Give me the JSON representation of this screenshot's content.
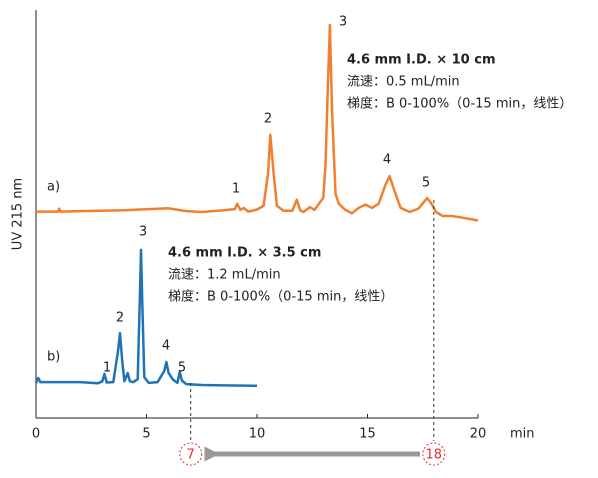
{
  "chart_data": {
    "type": "line",
    "y_label": "UV 215 nm",
    "x_label": "min",
    "xlim": [
      0,
      20
    ],
    "xticks": [
      0,
      5,
      10,
      15,
      20
    ],
    "ylim": [
      0,
      100
    ],
    "series": [
      {
        "name": "a)",
        "color": "#f07f2e",
        "description": [
          "4.6 mm I.D. × 10 cm",
          "流速：0.5 mL/min",
          "梯度：B 0-100%（0-15 min，线性）"
        ],
        "peak_labels": [
          "1",
          "2",
          "3",
          "4",
          "5"
        ],
        "x": [
          0,
          1,
          1.05,
          1.1,
          2,
          4,
          6,
          6.8,
          7.5,
          8.5,
          9,
          9.1,
          9.25,
          9.4,
          9.6,
          9.8,
          10,
          10.3,
          10.5,
          10.6,
          10.75,
          10.9,
          11.2,
          11.6,
          11.8,
          11.95,
          12.1,
          12.4,
          12.6,
          12.8,
          13.0,
          13.1,
          13.2,
          13.3,
          13.4,
          13.55,
          13.7,
          14,
          14.3,
          14.6,
          14.9,
          15.2,
          15.5,
          15.8,
          16.0,
          16.2,
          16.5,
          16.9,
          17.3,
          17.7,
          17.9,
          18.1,
          18.4,
          18.8,
          19.2,
          19.6,
          20
        ],
        "values": [
          50.6,
          50.6,
          51.3,
          50.6,
          50.7,
          50.9,
          51.4,
          50.7,
          50.5,
          50.9,
          51.2,
          52.5,
          51,
          51.5,
          50.6,
          50.8,
          51.1,
          52,
          60,
          69.4,
          60,
          52,
          50.8,
          50.8,
          53.5,
          50.9,
          50.5,
          51.7,
          51,
          52.5,
          54,
          62,
          80,
          96.3,
          75,
          55,
          52.5,
          51,
          50.2,
          51.5,
          52.3,
          51.5,
          52.5,
          57,
          59.3,
          56,
          51.5,
          50.5,
          51.3,
          53.9,
          52.5,
          50.5,
          49.5,
          49.5,
          49.2,
          48.8,
          48.4
        ]
      },
      {
        "name": "b)",
        "color": "#1f73b7",
        "description": [
          "4.6 mm I.D. × 3.5 cm",
          "流速：1.2 mL/min",
          "梯度：B 0-100%（0-15 min，线性）"
        ],
        "peak_labels": [
          "1",
          "2",
          "3",
          "4",
          "5"
        ],
        "x": [
          0,
          0.1,
          0.2,
          0.3,
          1,
          2,
          2.8,
          3.0,
          3.1,
          3.2,
          3.5,
          3.7,
          3.8,
          3.9,
          4.0,
          4.15,
          4.25,
          4.4,
          4.6,
          4.7,
          4.75,
          4.8,
          4.9,
          5.1,
          5.5,
          5.8,
          5.9,
          6.0,
          6.2,
          6.4,
          6.5,
          6.6,
          6.8,
          7.5,
          8.5,
          10
        ],
        "values": [
          8.6,
          9.8,
          8.8,
          8.8,
          8.8,
          8.8,
          8.5,
          9,
          10.8,
          8.7,
          8.8,
          16,
          20.8,
          14,
          9,
          11,
          9,
          8.8,
          9.5,
          30,
          41.2,
          30,
          10,
          8.6,
          8.8,
          11.5,
          13.7,
          11,
          9.4,
          8.6,
          11.3,
          9.2,
          8.3,
          8.1,
          8,
          7.9
        ]
      }
    ],
    "time_marks": {
      "from": 18,
      "to": 7
    }
  }
}
